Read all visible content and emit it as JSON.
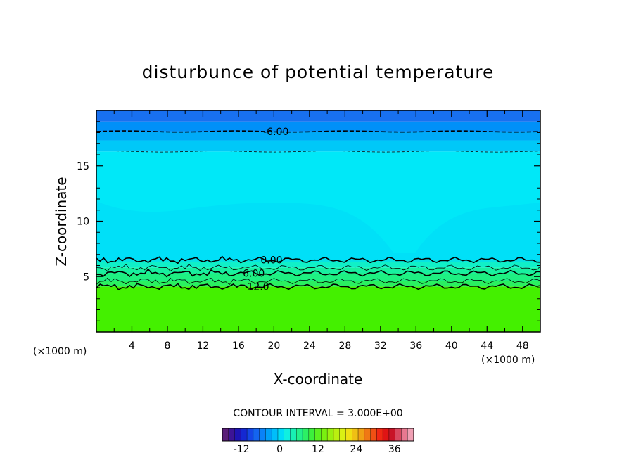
{
  "chart_data": {
    "type": "contour",
    "title": "disturbunce of potential temperature",
    "xlabel": "X-coordinate",
    "ylabel": "Z-coordinate",
    "x_unit": "(×1000 m)",
    "y_unit": "(×1000 m)",
    "xlim": [
      0,
      50
    ],
    "ylim": [
      0,
      20
    ],
    "x_ticks": [
      4,
      8,
      12,
      16,
      20,
      24,
      28,
      32,
      36,
      40,
      44,
      48
    ],
    "y_ticks": [
      5,
      10,
      15
    ],
    "x_tick_labels": [
      "4",
      "8",
      "12",
      "16",
      "20",
      "24",
      "28",
      "32",
      "36",
      "40",
      "44",
      "48"
    ],
    "y_tick_labels": [
      "5",
      "10",
      "15"
    ],
    "contour_interval_text": "CONTOUR INTERVAL = 3.000E+00",
    "contour_lines": [
      {
        "value": -6,
        "label": "-6.00",
        "z": 18.1,
        "style": "dashed",
        "labeled": true,
        "label_x": 18.8
      },
      {
        "value": -3,
        "label": "",
        "z": 16.3,
        "style": "dashed",
        "labeled": false
      },
      {
        "value": 0,
        "label": "0.00",
        "z": 6.5,
        "style": "solid",
        "labeled": true,
        "label_x": 18.3
      },
      {
        "value": 3,
        "label": "",
        "z": 5.8,
        "style": "solid",
        "labeled": false
      },
      {
        "value": 6,
        "label": "6.00",
        "z": 5.3,
        "style": "solid",
        "labeled": true,
        "label_x": 16.3
      },
      {
        "value": 9,
        "label": "",
        "z": 4.6,
        "style": "solid",
        "labeled": false
      },
      {
        "value": 12,
        "label": "12.0",
        "z": 4.1,
        "style": "solid",
        "labeled": true,
        "label_x": 16.8
      }
    ],
    "fill_bands": [
      {
        "z_from": 0,
        "z_to": 4.1,
        "color": "#44f000"
      },
      {
        "z_from": 4.1,
        "z_to": 4.6,
        "color": "#2af060"
      },
      {
        "z_from": 4.6,
        "z_to": 5.3,
        "color": "#1ef082"
      },
      {
        "z_from": 5.3,
        "z_to": 5.8,
        "color": "#18f0a0"
      },
      {
        "z_from": 5.8,
        "z_to": 6.5,
        "color": "#10f0c8"
      },
      {
        "z_from": 6.5,
        "z_to": 16.3,
        "color": "#00e8f8"
      },
      {
        "z_from": 16.3,
        "z_to": 17.3,
        "color": "#00c8f8"
      },
      {
        "z_from": 17.3,
        "z_to": 18.1,
        "color": "#00aaf8"
      },
      {
        "z_from": 18.1,
        "z_to": 19.0,
        "color": "#0090f8"
      },
      {
        "z_from": 19.0,
        "z_to": 20.0,
        "color": "#1870f0"
      }
    ],
    "colorbar": {
      "min": -18,
      "max": 42,
      "tick_values": [
        -12,
        0,
        12,
        24,
        36
      ],
      "tick_labels": [
        "-12",
        "0",
        "12",
        "24",
        "36"
      ],
      "colors": [
        "#5a1e78",
        "#3c1496",
        "#1e14b4",
        "#1428d2",
        "#1446e6",
        "#1464f0",
        "#0a82f8",
        "#00a0f8",
        "#00befa",
        "#00dcf8",
        "#10f0e0",
        "#18f0b4",
        "#22f08c",
        "#2cf064",
        "#3cf03c",
        "#5af020",
        "#7af010",
        "#9af010",
        "#baf010",
        "#daf014",
        "#f0e014",
        "#f0c014",
        "#f0a014",
        "#f07814",
        "#f05014",
        "#f02814",
        "#e01414",
        "#c81428",
        "#d84860",
        "#e87890",
        "#f0a0b4"
      ]
    }
  }
}
